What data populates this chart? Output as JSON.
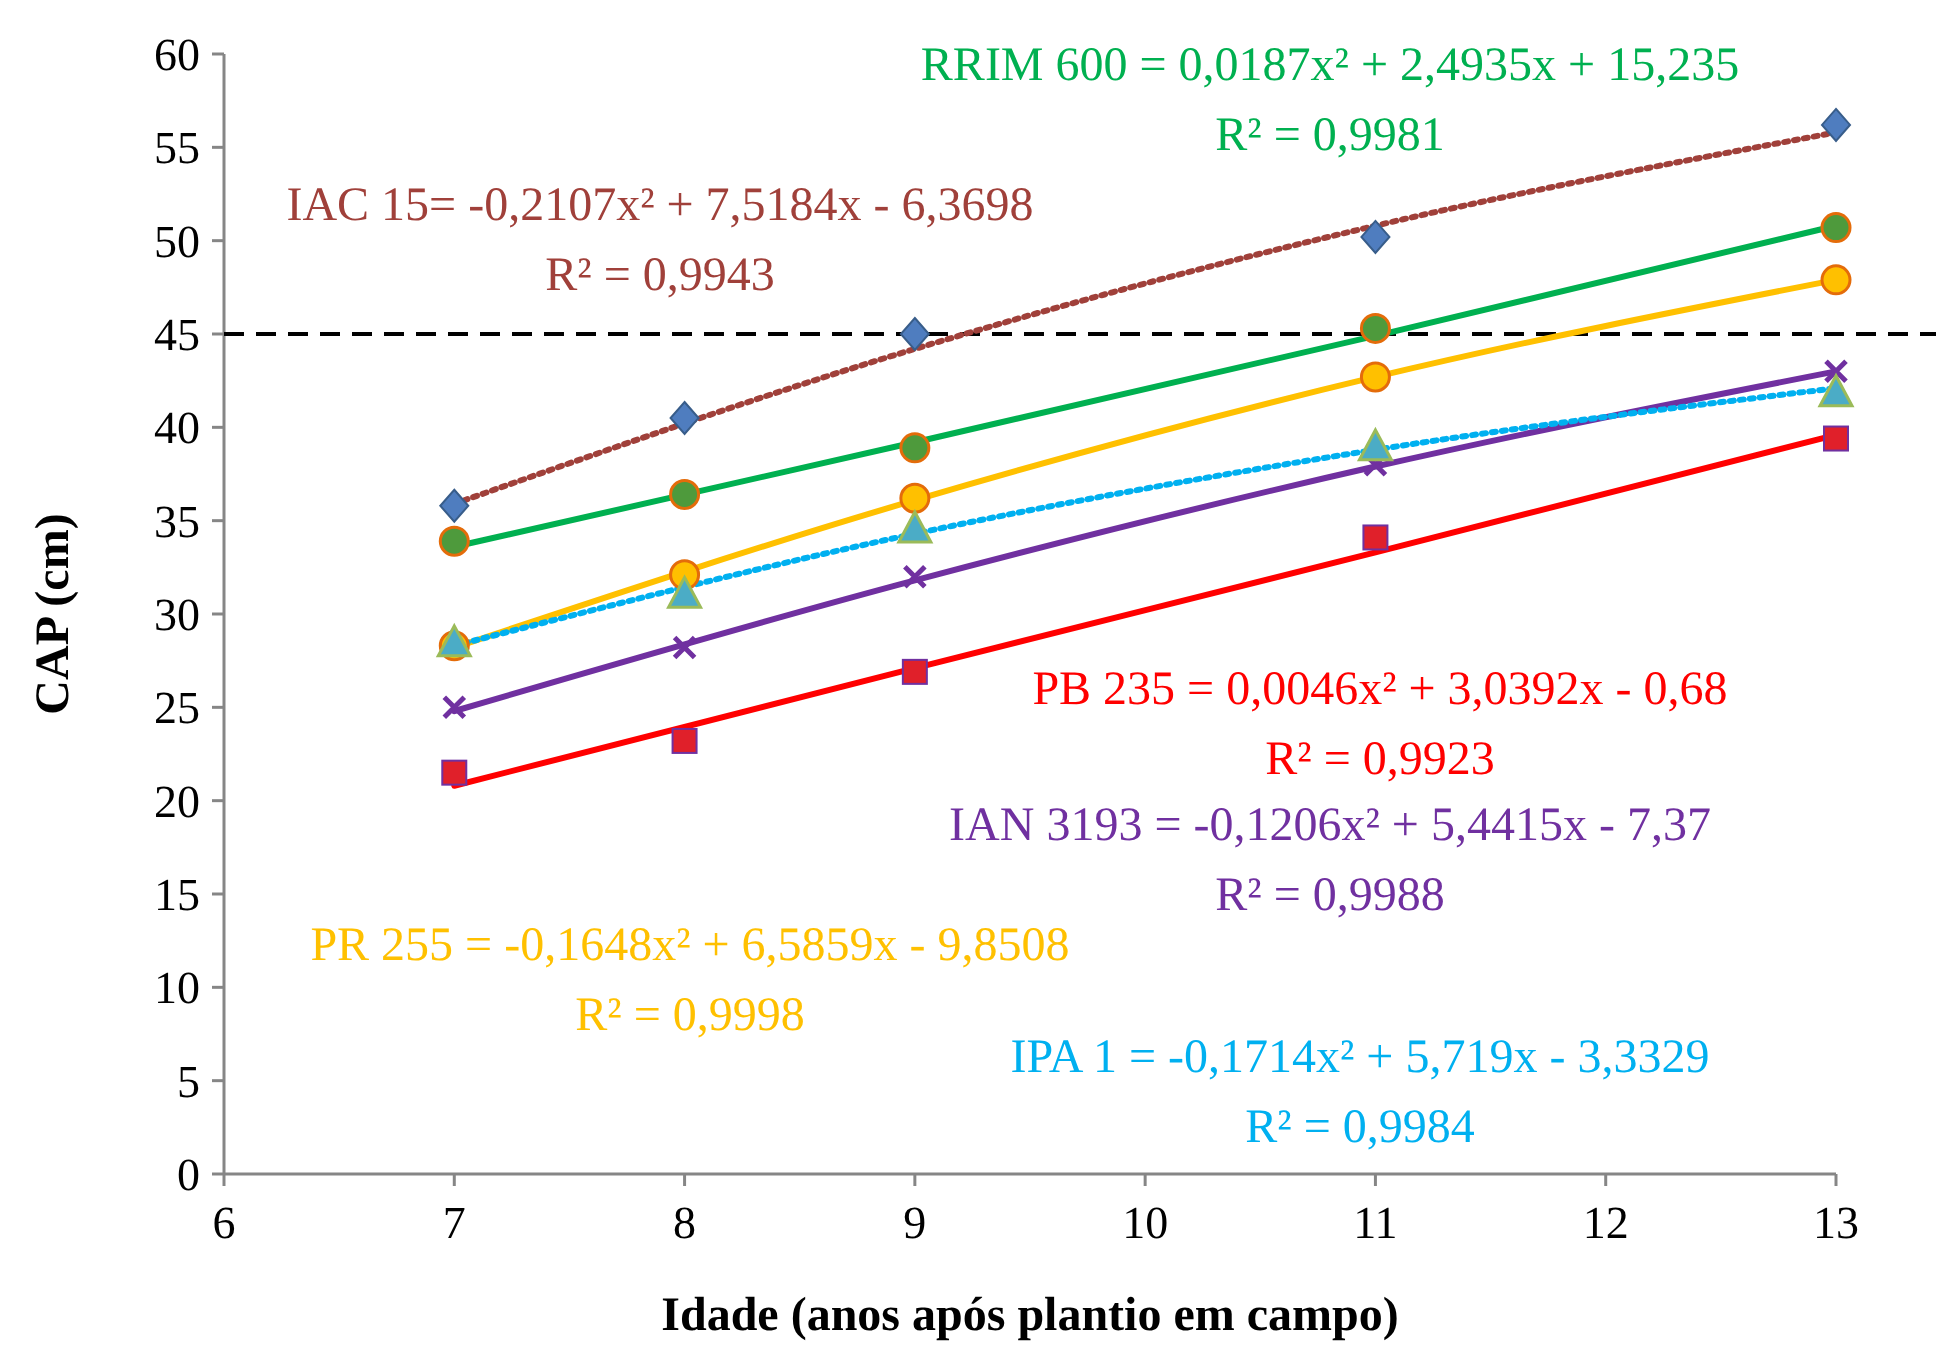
{
  "chart_data": {
    "type": "scatter",
    "xlabel": "Idade (anos após plantio em campo)",
    "ylabel": "CAP (cm)",
    "xlim": [
      6,
      13
    ],
    "xticks": [
      6,
      7,
      8,
      9,
      10,
      11,
      12,
      13
    ],
    "ylim": [
      0,
      60
    ],
    "yticks": [
      0,
      5,
      10,
      15,
      20,
      25,
      30,
      35,
      40,
      45,
      50,
      55,
      60
    ],
    "grid": false,
    "x": [
      7,
      8,
      9,
      11,
      13
    ],
    "series": [
      {
        "marker": "circle",
        "color": "#4e9a3c",
        "values": [
          33.9,
          36.4,
          38.9,
          45.3,
          50.7
        ]
      },
      {
        "marker": "diamond",
        "color": "#4f7dbf",
        "values": [
          35.8,
          40.5,
          45.0,
          50.2,
          56.2
        ]
      },
      {
        "marker": "square",
        "color": "#e0202a",
        "values": [
          21.5,
          23.2,
          26.9,
          34.1,
          39.4
        ]
      },
      {
        "marker": "cross",
        "color": "#7030a0",
        "values": [
          25.0,
          28.2,
          32.0,
          38.0,
          43.0
        ]
      },
      {
        "marker": "circle",
        "color": "#ffc000",
        "values": [
          28.3,
          32.1,
          36.2,
          42.7,
          47.9
        ]
      },
      {
        "marker": "triangle",
        "color": "#4bacc6",
        "values": [
          28.4,
          31.0,
          34.5,
          38.9,
          41.8
        ]
      },
      {
        "type": "line",
        "x": [
          7,
          9,
          11,
          13
        ],
        "line_style": "solid",
        "color": "#00b050",
        "values": [
          33.6,
          39.2,
          44.9,
          50.8
        ]
      },
      {
        "type": "line",
        "x": [
          7,
          9,
          11,
          13
        ],
        "line_style": "dotted",
        "color": "#a0403a",
        "values": [
          35.9,
          44.2,
          50.8,
          55.8
        ]
      },
      {
        "type": "line",
        "x": [
          7,
          9,
          11,
          13
        ],
        "line_style": "solid",
        "color": "#ff0000",
        "values": [
          20.8,
          27.1,
          33.3,
          39.6
        ]
      },
      {
        "type": "line",
        "x": [
          7,
          9,
          11,
          13
        ],
        "line_style": "solid",
        "color": "#7030a0",
        "values": [
          24.8,
          31.8,
          37.9,
          43.0
        ]
      },
      {
        "type": "line",
        "x": [
          7,
          9,
          11,
          13
        ],
        "line_style": "solid",
        "color": "#ffc000",
        "values": [
          28.2,
          36.1,
          42.7,
          47.9
        ]
      },
      {
        "type": "line",
        "x": [
          7,
          9,
          11,
          13
        ],
        "line_style": "dotted",
        "color": "#00b0f0",
        "values": [
          28.3,
          34.3,
          38.8,
          42.1
        ]
      }
    ],
    "ref_lines": [
      {
        "axis": "y",
        "value": 45,
        "color": "#000000",
        "line_style": "dashed"
      }
    ],
    "annotations": [
      "RRIM 600 = 0,0187x² + 2,4935x + 15,235\nR² = 0,9981",
      "IAC 15= -0,2107x² + 7,5184x - 6,3698\nR² = 0,9943",
      "PB 235 = 0,0046x² + 3,0392x - 0,68\nR² = 0,9923",
      "IAN 3193 = -0,1206x² + 5,4415x - 7,37\nR² = 0,9988",
      "PR 255 = -0,1648x² + 6,5859x - 9,8508\nR² = 0,9998",
      "IPA 1 = -0,1714x² + 5,719x - 3,3329\nR² = 0,9984"
    ]
  }
}
